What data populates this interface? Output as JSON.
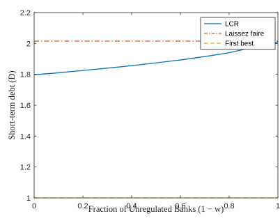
{
  "chart_data": {
    "type": "line",
    "title": "",
    "xlabel": "Fraction of Unregulated Banks (1 − w)",
    "ylabel": "Short-term debt (D)",
    "xlim": [
      0,
      1
    ],
    "ylim": [
      1,
      2.2
    ],
    "xticks": [
      0,
      0.2,
      0.4,
      0.6,
      0.8,
      1
    ],
    "xtick_labels": [
      "0",
      "0.2",
      "0.4",
      "0.6",
      "0.8",
      "1"
    ],
    "yticks": [
      1,
      1.2,
      1.4,
      1.6,
      1.8,
      2,
      2.2
    ],
    "ytick_labels": [
      "1",
      "1.2",
      "1.4",
      "1.6",
      "1.8",
      "2",
      "2.2"
    ],
    "grid": false,
    "legend_position": "top-right",
    "series": [
      {
        "name": "LCR",
        "color": "#0072BD",
        "style": "solid",
        "x": [
          0,
          0.1,
          0.2,
          0.3,
          0.4,
          0.5,
          0.6,
          0.7,
          0.8,
          0.9,
          1.0
        ],
        "y": [
          1.797,
          1.81,
          1.825,
          1.84,
          1.856,
          1.874,
          1.893,
          1.915,
          1.94,
          1.975,
          2.01
        ]
      },
      {
        "name": "Laissez faire",
        "color": "#D95319",
        "style": "dashdot",
        "x": [
          0,
          1
        ],
        "y": [
          2.015,
          2.015
        ]
      },
      {
        "name": "First best",
        "color": "#EDB120",
        "style": "dashed",
        "x": [
          0,
          1
        ],
        "y": [
          1.0,
          1.0
        ]
      }
    ]
  }
}
